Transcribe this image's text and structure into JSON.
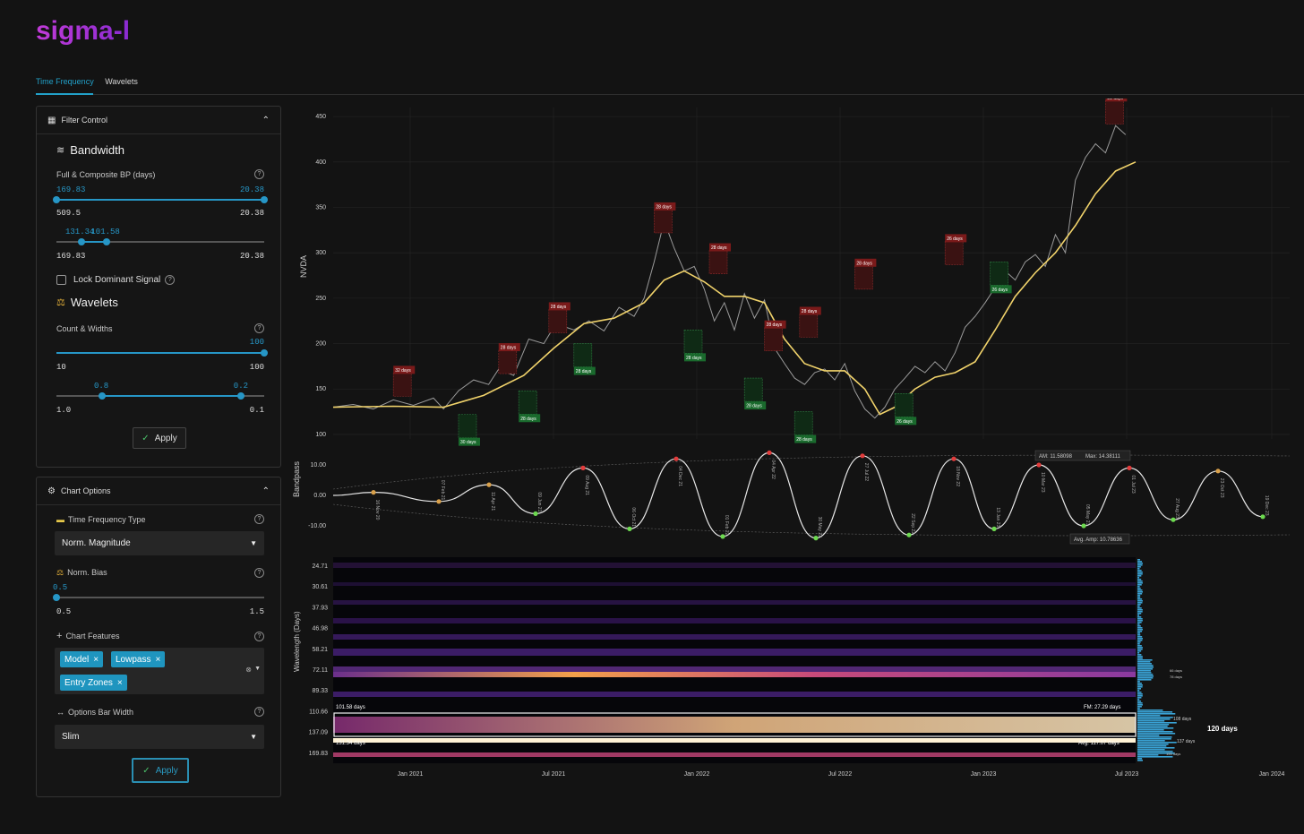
{
  "app": {
    "title": "sigma-l"
  },
  "tabs": [
    {
      "label": "Time Frequency"
    },
    {
      "label": "Wavelets"
    }
  ],
  "filter_panel": {
    "title": "Filter Control",
    "bandwidth": {
      "title": "Bandwidth",
      "label": "Full & Composite BP (days)",
      "slider1": {
        "sel_low": "169.83",
        "sel_high": "20.38",
        "min": "509.5",
        "max": "20.38"
      },
      "slider2": {
        "sel_low": "131.34",
        "sel_high": "101.58",
        "min": "169.83",
        "max": "20.38"
      }
    },
    "lock_label": "Lock Dominant Signal",
    "wavelets": {
      "title": "Wavelets",
      "label": "Count & Widths",
      "slider1": {
        "sel": "100",
        "min": "10",
        "max": "100"
      },
      "slider2": {
        "sel_low": "0.8",
        "sel_high": "0.2",
        "min": "1.0",
        "max": "0.1"
      }
    },
    "apply_label": "Apply"
  },
  "chart_options": {
    "title": "Chart Options",
    "tf_type": {
      "label": "Time Frequency Type",
      "value": "Norm. Magnitude"
    },
    "norm_bias": {
      "label": "Norm. Bias",
      "sel": "0.5",
      "min": "0.5",
      "max": "1.5"
    },
    "features": {
      "label": "Chart Features",
      "tags": [
        "Model",
        "Lowpass",
        "Entry Zones"
      ]
    },
    "bar_width": {
      "label": "Options Bar Width",
      "value": "Slim"
    },
    "apply_label": "Apply"
  },
  "chart_data": [
    {
      "type": "line",
      "ylabel": "NVDA",
      "yticks": [
        "450",
        "400",
        "350",
        "300",
        "250",
        "200",
        "150",
        "100"
      ],
      "ylim": [
        95,
        460
      ],
      "series": [
        {
          "values": [
            [
              0,
              130
            ],
            [
              20,
              133
            ],
            [
              40,
              128
            ],
            [
              60,
              138
            ],
            [
              80,
              132
            ],
            [
              100,
              140
            ],
            [
              110,
              128
            ],
            [
              125,
              148
            ],
            [
              140,
              160
            ],
            [
              155,
              155
            ],
            [
              165,
              172
            ],
            [
              180,
              165
            ],
            [
              195,
              205
            ],
            [
              210,
              200
            ],
            [
              222,
              222
            ],
            [
              240,
              215
            ],
            [
              255,
              225
            ],
            [
              270,
              214
            ],
            [
              285,
              240
            ],
            [
              300,
              230
            ],
            [
              310,
              250
            ],
            [
              320,
              290
            ],
            [
              330,
              335
            ],
            [
              340,
              305
            ],
            [
              350,
              280
            ],
            [
              360,
              285
            ],
            [
              370,
              260
            ],
            [
              380,
              225
            ],
            [
              390,
              245
            ],
            [
              400,
              215
            ],
            [
              410,
              255
            ],
            [
              420,
              228
            ],
            [
              430,
              248
            ],
            [
              440,
              195
            ],
            [
              450,
              178
            ],
            [
              460,
              162
            ],
            [
              470,
              155
            ],
            [
              480,
              168
            ],
            [
              490,
              172
            ],
            [
              500,
              160
            ],
            [
              510,
              178
            ],
            [
              520,
              148
            ],
            [
              530,
              128
            ],
            [
              540,
              118
            ],
            [
              550,
              130
            ],
            [
              560,
              150
            ],
            [
              570,
              162
            ],
            [
              580,
              175
            ],
            [
              590,
              168
            ],
            [
              600,
              180
            ],
            [
              610,
              170
            ],
            [
              620,
              190
            ],
            [
              630,
              218
            ],
            [
              640,
              230
            ],
            [
              650,
              245
            ],
            [
              660,
              262
            ],
            [
              670,
              280
            ],
            [
              680,
              270
            ],
            [
              690,
              290
            ],
            [
              700,
              298
            ],
            [
              710,
              285
            ],
            [
              720,
              320
            ],
            [
              730,
              300
            ],
            [
              740,
              380
            ],
            [
              750,
              405
            ],
            [
              760,
              420
            ],
            [
              770,
              410
            ],
            [
              780,
              440
            ],
            [
              790,
              430
            ]
          ]
        },
        {
          "values": [
            [
              0,
              130
            ],
            [
              60,
              131
            ],
            [
              110,
              130
            ],
            [
              150,
              143
            ],
            [
              190,
              165
            ],
            [
              220,
              195
            ],
            [
              250,
              222
            ],
            [
              280,
              228
            ],
            [
              310,
              245
            ],
            [
              330,
              270
            ],
            [
              350,
              280
            ],
            [
              370,
              268
            ],
            [
              390,
              252
            ],
            [
              410,
              252
            ],
            [
              430,
              245
            ],
            [
              450,
              205
            ],
            [
              470,
              178
            ],
            [
              490,
              170
            ],
            [
              510,
              170
            ],
            [
              530,
              150
            ],
            [
              545,
              122
            ],
            [
              560,
              130
            ],
            [
              580,
              150
            ],
            [
              600,
              163
            ],
            [
              620,
              168
            ],
            [
              640,
              180
            ],
            [
              660,
              215
            ],
            [
              680,
              252
            ],
            [
              700,
              278
            ],
            [
              720,
              300
            ],
            [
              740,
              330
            ],
            [
              760,
              365
            ],
            [
              780,
              390
            ],
            [
              800,
              400
            ]
          ]
        }
      ],
      "markers": [
        {
          "label": "32 days"
        },
        {
          "label": "30 days"
        },
        {
          "label": "28 days"
        },
        {
          "label": "28 days"
        },
        {
          "label": "28 days"
        },
        {
          "label": "28 days"
        },
        {
          "label": "28 days"
        },
        {
          "label": "28 days"
        },
        {
          "label": "28 days"
        },
        {
          "label": "28 days"
        },
        {
          "label": "28 days"
        },
        {
          "label": "28 days"
        },
        {
          "label": "28 days"
        },
        {
          "label": "28 days"
        },
        {
          "label": "26 days"
        },
        {
          "label": "26 days"
        },
        {
          "label": "26 days"
        },
        {
          "label": "23 days"
        }
      ]
    },
    {
      "type": "line",
      "ylabel": "Bandpass",
      "yticks": [
        "10.00",
        "0.00",
        "-10.00"
      ],
      "annotations": {
        "am": "AM: 11.58098",
        "max": "Max: 14.38111",
        "avg": "Avg. Amp: 10.78636"
      },
      "extrema": [
        {
          "label": "16 Nov 20"
        },
        {
          "label": "07 Feb 21"
        },
        {
          "label": "11 Apr 21"
        },
        {
          "label": "09 Jun 21"
        },
        {
          "label": "09 Aug 21"
        },
        {
          "label": "06 Oct 21"
        },
        {
          "label": "04 Dec 21"
        },
        {
          "label": "01 Feb 22"
        },
        {
          "label": "04 Apr 22"
        },
        {
          "label": "30 May 22"
        },
        {
          "label": "27 Jul 22"
        },
        {
          "label": "22 Sep 22"
        },
        {
          "label": "18 Nov 22"
        },
        {
          "label": "13 Jan 23"
        },
        {
          "label": "10 Mar 23"
        },
        {
          "label": "05 May 23"
        },
        {
          "label": "01 Jul 23"
        },
        {
          "label": "27 Aug 23"
        },
        {
          "label": "23 Oct 23"
        },
        {
          "label": "19 Dec 23"
        }
      ]
    },
    {
      "type": "heatmap",
      "ylabel": "Wavelength (Days)",
      "yticks": [
        "24.71",
        "30.61",
        "37.93",
        "46.98",
        "58.21",
        "72.11",
        "89.33",
        "110.66",
        "137.09",
        "169.83"
      ],
      "xticks": [
        "Jan 2021",
        "Jul 2021",
        "Jan 2022",
        "Jul 2022",
        "Jan 2023",
        "Jul 2023",
        "Jan 2024"
      ],
      "band_labels": {
        "upper": "101.58 days",
        "lower": "131.34 days",
        "fm": "FM: 27.29 days",
        "avg": "Avg: 117.07 days"
      },
      "histogram_labels": [
        "66 days",
        "78 days",
        "108 days",
        "120 days",
        "137 days",
        "155 days"
      ]
    }
  ]
}
